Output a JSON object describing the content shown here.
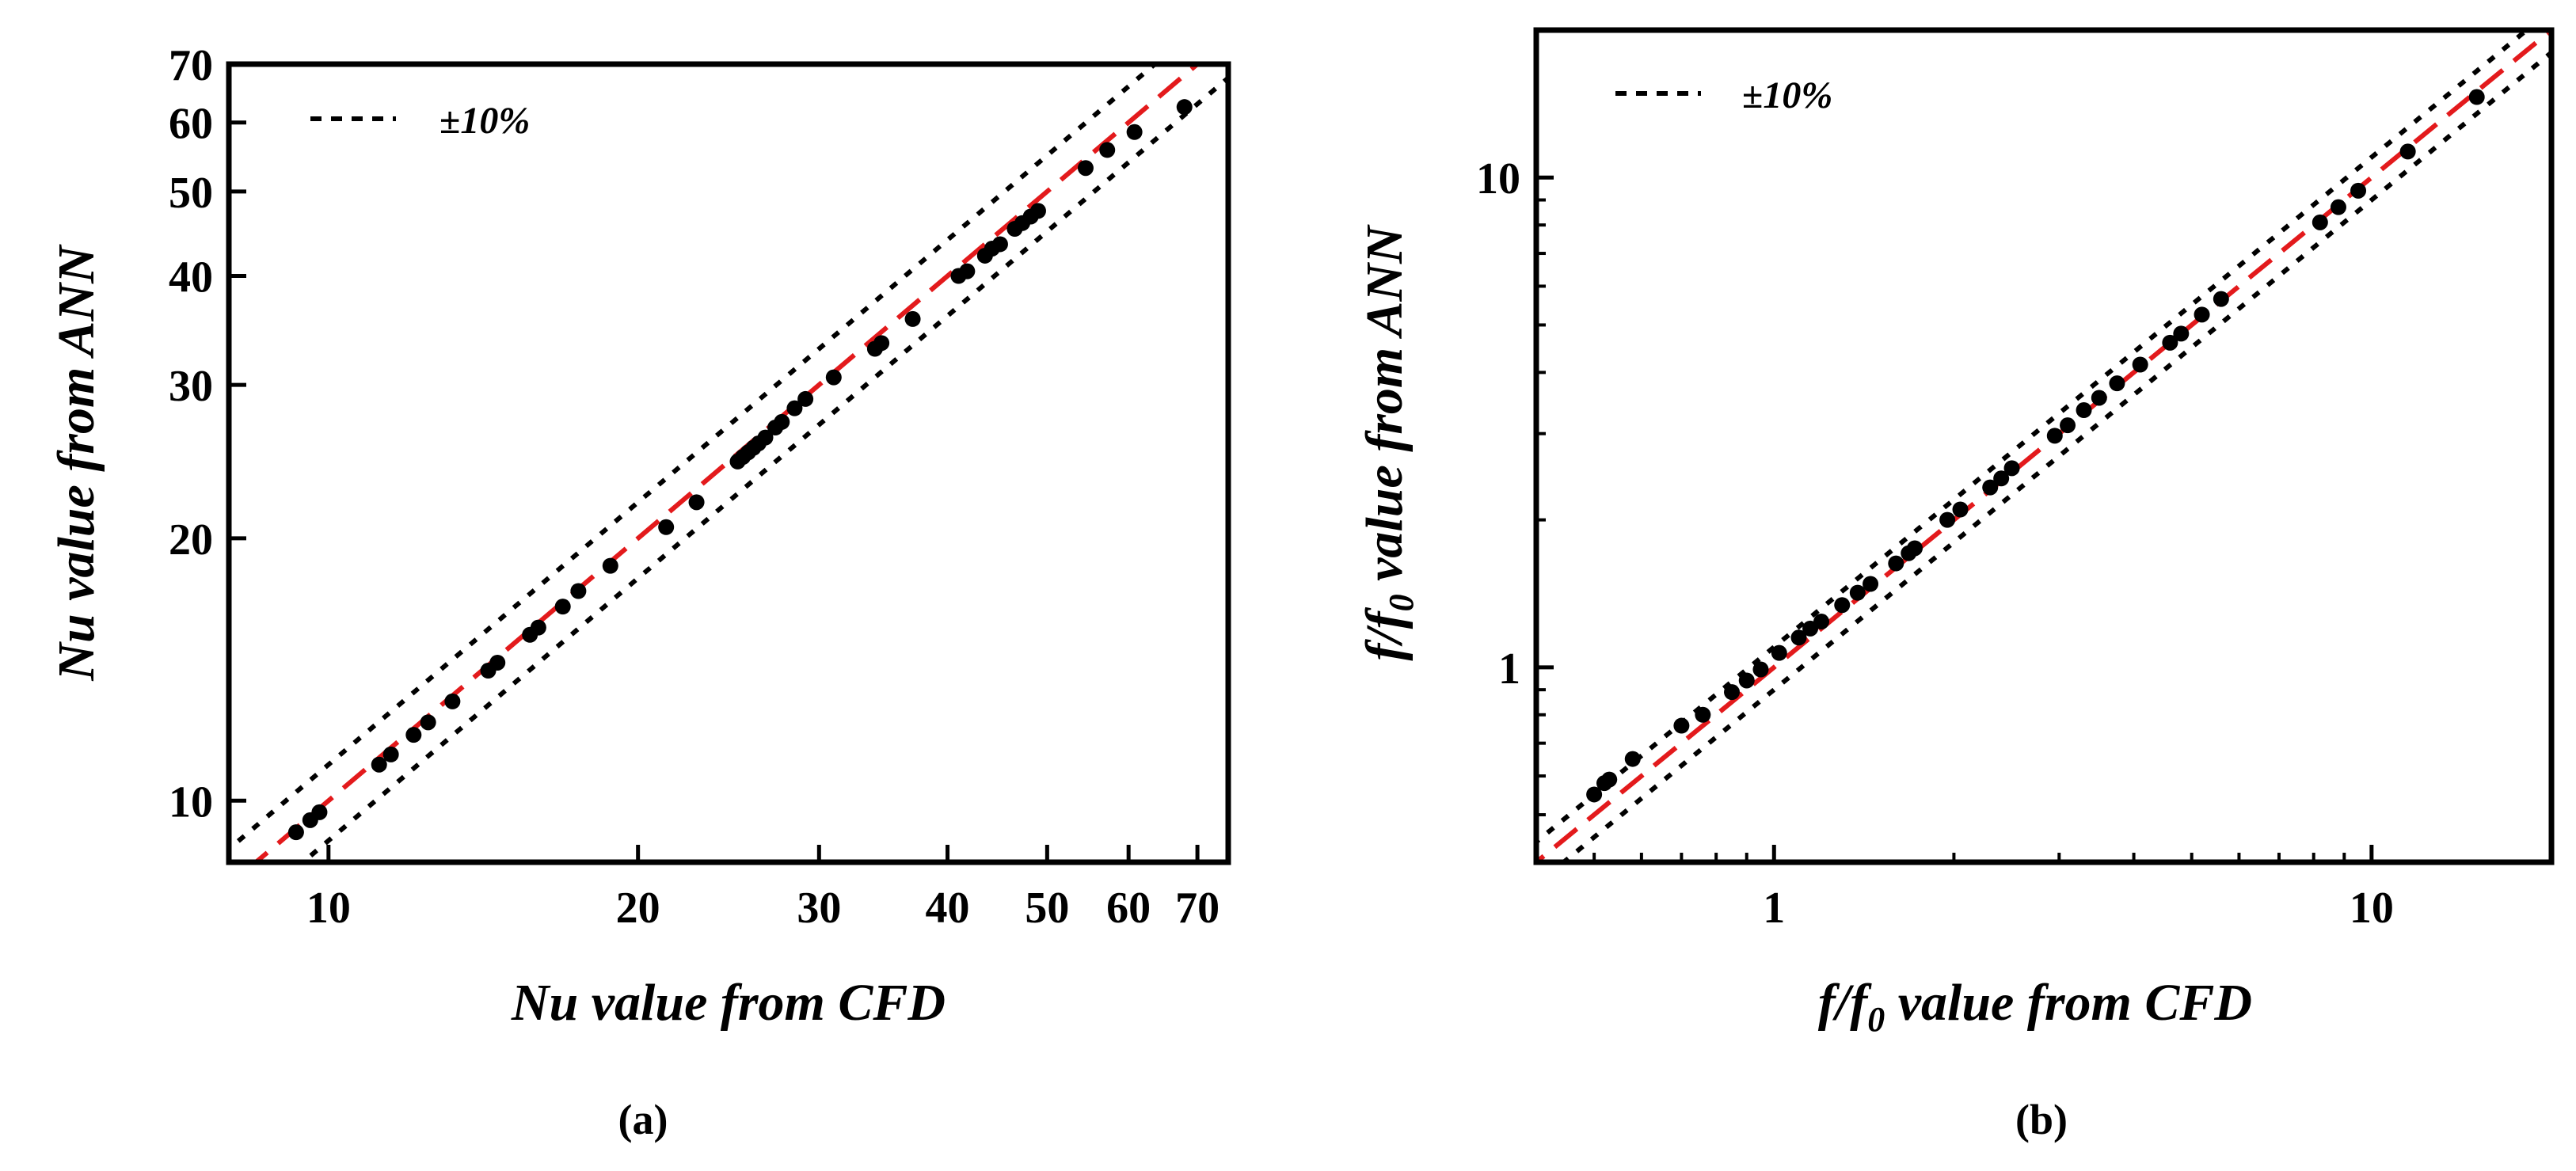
{
  "chart_data": [
    {
      "type": "scatter",
      "panel_label": "(a)",
      "xlabel": "Nu value from CFD",
      "ylabel": "Nu value from ANN",
      "xscale": "log",
      "yscale": "log",
      "xlim": [
        8,
        75
      ],
      "ylim": [
        8.5,
        70
      ],
      "x_ticks": [
        10,
        20,
        30,
        40,
        50,
        60,
        70
      ],
      "x_tick_labels": [
        "10",
        "20",
        "30",
        "40",
        "50",
        "60",
        "70"
      ],
      "y_ticks": [
        10,
        20,
        30,
        40,
        50,
        60,
        70
      ],
      "y_tick_labels": [
        "10",
        "20",
        "30",
        "40",
        "50",
        "60",
        "70"
      ],
      "legend": {
        "label": "±10%",
        "position": "top-left"
      },
      "reference_lines": {
        "ideal": "y = x",
        "upper": "y = 1.1x",
        "lower": "y = 0.9x",
        "ideal_color": "#e31a1c",
        "band_color": "#000000"
      },
      "series": [
        {
          "name": "data",
          "x": [
            9.3,
            9.6,
            9.8,
            11.2,
            11.5,
            12.1,
            12.5,
            13.2,
            14.3,
            14.6,
            15.7,
            16.0,
            16.9,
            17.5,
            18.8,
            21.3,
            22.8,
            25.0,
            25.3,
            25.6,
            25.9,
            26.2,
            26.6,
            27.2,
            27.6,
            28.4,
            29.1,
            31.0,
            34.0,
            34.5,
            37.0,
            41.0,
            41.8,
            43.5,
            44.2,
            45.0,
            46.5,
            47.3,
            48.2,
            49.0,
            54.5,
            57.2,
            60.8,
            68.0
          ],
          "y": [
            9.2,
            9.5,
            9.7,
            11.0,
            11.3,
            11.9,
            12.3,
            13.0,
            14.1,
            14.4,
            15.5,
            15.8,
            16.7,
            17.4,
            18.6,
            20.6,
            22.0,
            24.5,
            24.8,
            25.1,
            25.4,
            25.7,
            26.1,
            26.8,
            27.2,
            28.2,
            28.9,
            30.6,
            33.0,
            33.5,
            35.7,
            40.0,
            40.5,
            42.2,
            43.0,
            43.5,
            45.3,
            46.0,
            46.8,
            47.5,
            53.2,
            55.8,
            58.5,
            62.5
          ]
        }
      ]
    },
    {
      "type": "scatter",
      "panel_label": "(b)",
      "xlabel": "f/f0  value from CFD",
      "ylabel": "f/f0 value from ANN",
      "xscale": "log",
      "yscale": "log",
      "xlim": [
        0.4,
        20
      ],
      "ylim": [
        0.4,
        20
      ],
      "x_ticks": [
        1,
        10
      ],
      "x_tick_labels": [
        "1",
        "10"
      ],
      "y_ticks": [
        1,
        10
      ],
      "y_tick_labels": [
        "1",
        "10"
      ],
      "legend": {
        "label": "±10%",
        "position": "top-left"
      },
      "reference_lines": {
        "ideal": "y = x",
        "upper": "y = 1.1x",
        "lower": "y = 0.9x",
        "ideal_color": "#e31a1c",
        "band_color": "#000000"
      },
      "series": [
        {
          "name": "data",
          "x": [
            0.5,
            0.52,
            0.53,
            0.58,
            0.7,
            0.76,
            0.85,
            0.9,
            0.95,
            1.02,
            1.1,
            1.15,
            1.2,
            1.3,
            1.38,
            1.45,
            1.6,
            1.68,
            1.72,
            1.95,
            2.05,
            2.3,
            2.4,
            2.5,
            2.95,
            3.1,
            3.3,
            3.5,
            3.75,
            4.1,
            4.6,
            4.8,
            5.2,
            5.6,
            8.2,
            8.8,
            9.5,
            11.5,
            15.0
          ],
          "y": [
            0.55,
            0.58,
            0.59,
            0.65,
            0.76,
            0.8,
            0.89,
            0.94,
            0.99,
            1.07,
            1.15,
            1.2,
            1.24,
            1.34,
            1.42,
            1.48,
            1.63,
            1.71,
            1.75,
            2.0,
            2.1,
            2.33,
            2.43,
            2.55,
            2.97,
            3.12,
            3.35,
            3.55,
            3.8,
            4.15,
            4.6,
            4.8,
            5.25,
            5.65,
            8.1,
            8.7,
            9.4,
            11.3,
            14.6
          ]
        }
      ]
    }
  ]
}
